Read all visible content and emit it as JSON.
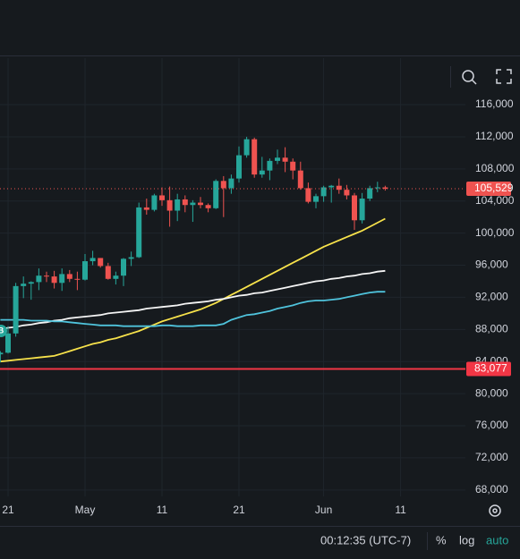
{
  "chart_data": {
    "type": "candlestick",
    "categories": [
      null,
      "21",
      null,
      null,
      null,
      null,
      null,
      null,
      null,
      null,
      null,
      "May",
      null,
      null,
      null,
      null,
      null,
      null,
      null,
      null,
      null,
      "11",
      null,
      null,
      null,
      null,
      null,
      null,
      null,
      null,
      null,
      "21",
      null,
      null,
      null,
      null,
      null,
      null,
      null,
      null,
      null,
      null,
      "Jun",
      null,
      null,
      null,
      null,
      null,
      null,
      null,
      null,
      null,
      "11",
      null
    ],
    "open": [
      84900,
      85100,
      87500,
      93400,
      93700,
      93900,
      94700,
      94600,
      93800,
      94900,
      94300,
      94200,
      96500,
      96900,
      95900,
      94300,
      94700,
      96800,
      97000,
      103200,
      102900,
      104700,
      104100,
      102800,
      104200,
      103500,
      103800,
      103500,
      103100,
      106500,
      105600,
      106800,
      109700,
      111700,
      107300,
      107800,
      109000,
      109400,
      108900,
      107800,
      105600,
      103900,
      104600,
      105700,
      105900,
      105400,
      104700,
      101600,
      104300,
      105600,
      105700,
      null,
      null,
      null
    ],
    "high": [
      85300,
      88400,
      93800,
      94600,
      94000,
      95600,
      95200,
      95300,
      95600,
      95400,
      95200,
      97400,
      97800,
      96900,
      96300,
      95200,
      96900,
      97700,
      103800,
      104300,
      104900,
      105700,
      105800,
      104900,
      104700,
      104100,
      104500,
      103700,
      106700,
      107100,
      107300,
      110800,
      112000,
      111900,
      109500,
      109300,
      110400,
      110700,
      109300,
      108900,
      106300,
      104900,
      105900,
      106000,
      106800,
      106000,
      105000,
      105000,
      105900,
      106400,
      105900,
      null,
      null,
      null
    ],
    "low": [
      83900,
      85000,
      87100,
      91900,
      91700,
      92900,
      93900,
      93100,
      92800,
      93900,
      92900,
      94100,
      96000,
      95700,
      94200,
      93600,
      93400,
      95900,
      96900,
      102300,
      102700,
      103400,
      100800,
      101500,
      102600,
      101400,
      103100,
      102600,
      103000,
      102000,
      104900,
      106300,
      109400,
      106900,
      106900,
      106600,
      108600,
      107600,
      106700,
      105400,
      103700,
      103100,
      103900,
      103800,
      104900,
      104200,
      100400,
      101200,
      104000,
      105100,
      105300,
      null,
      null,
      null
    ],
    "close": [
      85100,
      87500,
      93400,
      93700,
      93900,
      94700,
      94600,
      93800,
      94900,
      94300,
      94200,
      96500,
      96900,
      95900,
      94300,
      94700,
      96800,
      97000,
      103200,
      102900,
      104700,
      104100,
      102800,
      104200,
      103500,
      103800,
      103500,
      103100,
      106500,
      105600,
      106800,
      109700,
      111700,
      107300,
      107800,
      109000,
      109400,
      108900,
      107800,
      105600,
      103900,
      104600,
      105700,
      105900,
      105400,
      104700,
      101600,
      104300,
      105600,
      105700,
      105529,
      null,
      null,
      null
    ],
    "up_color": "#26a69a",
    "down_color": "#ef5350",
    "series": [
      {
        "color": "#f7e24b",
        "values": [
          84000,
          84100,
          84200,
          84300,
          84400,
          84500,
          84600,
          84700,
          85000,
          85300,
          85600,
          85900,
          86200,
          86400,
          86700,
          86900,
          87200,
          87500,
          87800,
          88200,
          88600,
          89000,
          89300,
          89600,
          89900,
          90200,
          90500,
          90900,
          91300,
          91800,
          92300,
          92800,
          93300,
          93800,
          94300,
          94800,
          95300,
          95800,
          96300,
          96800,
          97300,
          97800,
          98300,
          98700,
          99100,
          99500,
          99900,
          100300,
          100800,
          101300,
          101800,
          null,
          null,
          null
        ]
      },
      {
        "color": "#f5f5f5",
        "values": [
          88000,
          88200,
          88300,
          88500,
          88600,
          88800,
          88900,
          89100,
          89200,
          89400,
          89500,
          89600,
          89700,
          89800,
          90000,
          90100,
          90200,
          90300,
          90400,
          90600,
          90700,
          90800,
          90900,
          91000,
          91200,
          91300,
          91400,
          91500,
          91700,
          91800,
          92000,
          92200,
          92300,
          92500,
          92600,
          92800,
          93000,
          93200,
          93400,
          93600,
          93800,
          94000,
          94100,
          94300,
          94400,
          94600,
          94700,
          94900,
          95000,
          95200,
          95300,
          null,
          null,
          null
        ]
      },
      {
        "color": "#4fc3dc",
        "values": [
          89200,
          89200,
          89200,
          89200,
          89100,
          89100,
          89100,
          89000,
          89000,
          88900,
          88800,
          88700,
          88600,
          88500,
          88500,
          88500,
          88400,
          88400,
          88400,
          88400,
          88400,
          88500,
          88500,
          88400,
          88400,
          88400,
          88500,
          88500,
          88500,
          88700,
          89200,
          89500,
          89800,
          89900,
          90100,
          90300,
          90600,
          90800,
          91000,
          91300,
          91500,
          91600,
          91600,
          91700,
          91800,
          92000,
          92200,
          92400,
          92600,
          92700,
          92700,
          null,
          null,
          null
        ]
      }
    ],
    "ylim": [
      67200,
      121800
    ],
    "yticks": [
      {
        "value": 68000,
        "label": "68,000"
      },
      {
        "value": 72000,
        "label": "72,000"
      },
      {
        "value": 76000,
        "label": "76,000"
      },
      {
        "value": 80000,
        "label": "80,000"
      },
      {
        "value": 84000,
        "label": "84,000"
      },
      {
        "value": 88000,
        "label": "88,000"
      },
      {
        "value": 92000,
        "label": "92,000"
      },
      {
        "value": 96000,
        "label": "96,000"
      },
      {
        "value": 100000,
        "label": "100,000"
      },
      {
        "value": 104000,
        "label": "104,000"
      },
      {
        "value": 108000,
        "label": "108,000"
      },
      {
        "value": 112000,
        "label": "112,000"
      },
      {
        "value": 116000,
        "label": "116,000"
      }
    ],
    "grid": true,
    "last_price": {
      "value": 105529,
      "label": "105,529"
    },
    "alert_line": {
      "value": 83077,
      "label": "83,077",
      "color": "#f23645"
    },
    "marker_label": "B"
  },
  "toolbar": {
    "clock": "00:12:35 (UTC-7)",
    "percent": "%",
    "log": "log",
    "auto": "auto"
  }
}
